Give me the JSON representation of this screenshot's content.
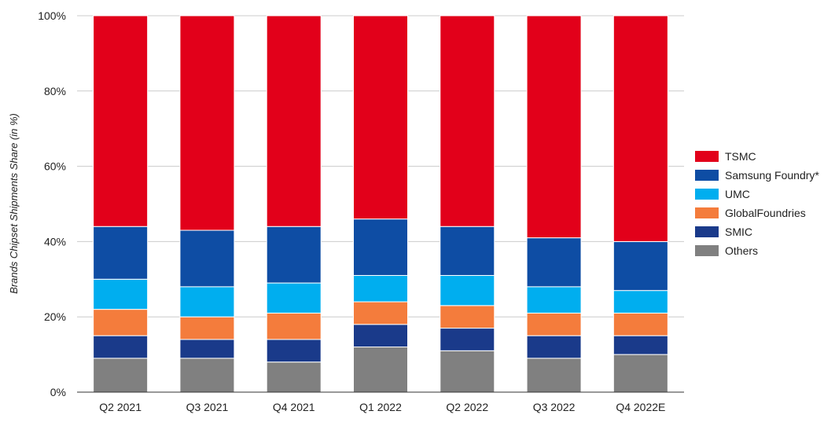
{
  "chart_data": {
    "type": "bar",
    "stacked": true,
    "ylabel": "Brands Chipset Shipments Share (in %)",
    "ylim": [
      0,
      100
    ],
    "yticks": [
      "0%",
      "20%",
      "40%",
      "60%",
      "80%",
      "100%"
    ],
    "grid": true,
    "legend_position": "right",
    "categories": [
      "Q2 2021",
      "Q3 2021",
      "Q4 2021",
      "Q1 2022",
      "Q2 2022",
      "Q3 2022",
      "Q4 2022E"
    ],
    "series": [
      {
        "name": "Others",
        "color": "#808080",
        "values": [
          9,
          9,
          8,
          12,
          11,
          9,
          10
        ]
      },
      {
        "name": "SMIC",
        "color": "#1a3a8a",
        "values": [
          6,
          5,
          6,
          6,
          6,
          6,
          5
        ]
      },
      {
        "name": "GlobalFoundries",
        "color": "#f47c3c",
        "values": [
          7,
          6,
          7,
          6,
          6,
          6,
          6
        ]
      },
      {
        "name": "UMC",
        "color": "#00aeef",
        "values": [
          8,
          8,
          8,
          7,
          8,
          7,
          6
        ]
      },
      {
        "name": "Samsung Foundry*",
        "color": "#0e4da4",
        "values": [
          14,
          15,
          15,
          15,
          13,
          13,
          13
        ]
      },
      {
        "name": "TSMC",
        "color": "#e2001a",
        "values": [
          56,
          57,
          56,
          54,
          56,
          59,
          60
        ]
      }
    ],
    "legend_order": [
      "TSMC",
      "Samsung Foundry*",
      "UMC",
      "GlobalFoundries",
      "SMIC",
      "Others"
    ]
  }
}
